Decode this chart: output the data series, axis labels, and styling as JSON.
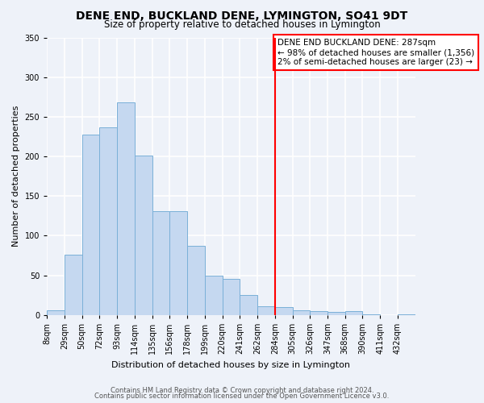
{
  "title": "DENE END, BUCKLAND DENE, LYMINGTON, SO41 9DT",
  "subtitle": "Size of property relative to detached houses in Lymington",
  "xlabel": "Distribution of detached houses by size in Lymington",
  "ylabel": "Number of detached properties",
  "bin_labels": [
    "8sqm",
    "29sqm",
    "50sqm",
    "72sqm",
    "93sqm",
    "114sqm",
    "135sqm",
    "156sqm",
    "178sqm",
    "199sqm",
    "220sqm",
    "241sqm",
    "262sqm",
    "284sqm",
    "305sqm",
    "326sqm",
    "347sqm",
    "368sqm",
    "390sqm",
    "411sqm",
    "432sqm"
  ],
  "bar_heights": [
    6,
    76,
    228,
    237,
    268,
    201,
    131,
    131,
    87,
    50,
    46,
    25,
    11,
    10,
    6,
    5,
    4,
    5,
    1,
    0,
    1
  ],
  "bar_color": "#c5d8f0",
  "bar_edge_color": "#7ab0d8",
  "vline_index": 13,
  "vline_color": "red",
  "annotation_title": "DENE END BUCKLAND DENE: 287sqm",
  "annotation_line1": "← 98% of detached houses are smaller (1,356)",
  "annotation_line2": "2% of semi-detached houses are larger (23) →",
  "annotation_box_color": "white",
  "annotation_box_edge_color": "red",
  "ylim": [
    0,
    350
  ],
  "yticks": [
    0,
    50,
    100,
    150,
    200,
    250,
    300,
    350
  ],
  "footer_line1": "Contains HM Land Registry data © Crown copyright and database right 2024.",
  "footer_line2": "Contains public sector information licensed under the Open Government Licence v3.0.",
  "background_color": "#eef2f9",
  "grid_color": "white",
  "title_fontsize": 10,
  "subtitle_fontsize": 8.5,
  "axis_label_fontsize": 8,
  "tick_fontsize": 7,
  "footer_fontsize": 6,
  "annotation_fontsize": 7.5
}
